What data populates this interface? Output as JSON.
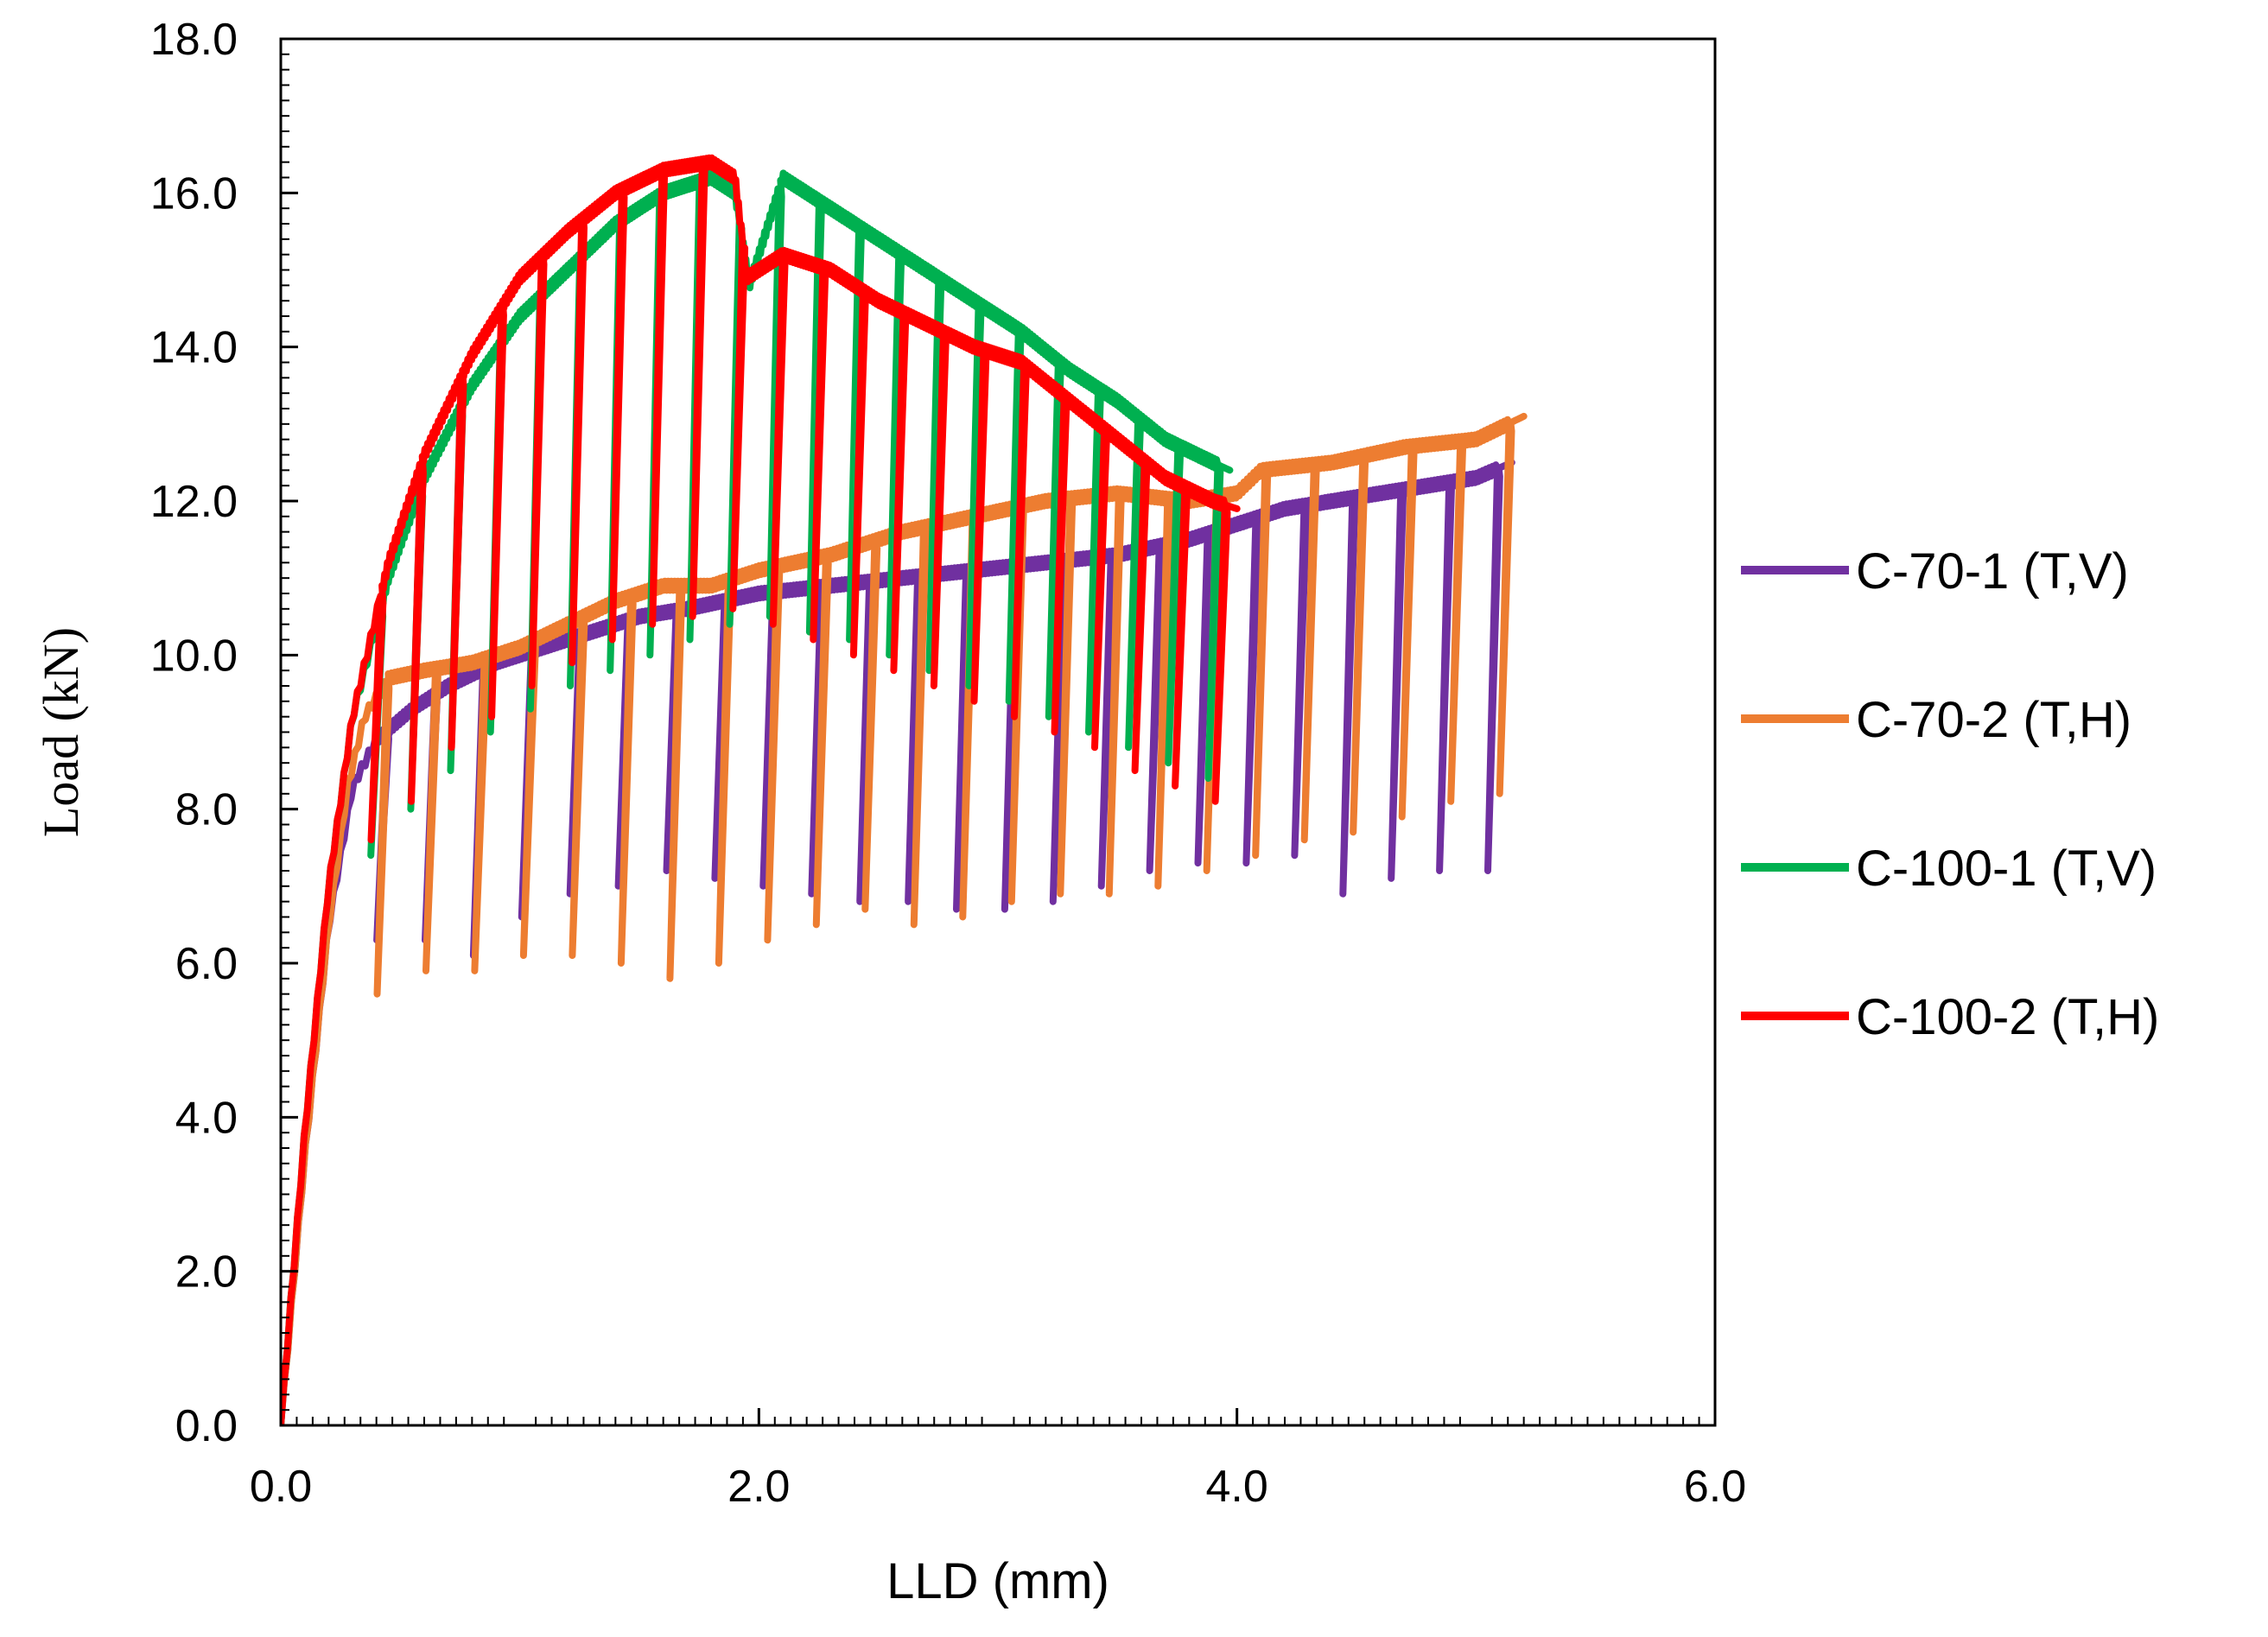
{
  "chart_data": {
    "type": "line",
    "title": "",
    "xlabel": "LLD (mm)",
    "ylabel": "Load (kN)",
    "xlim": [
      0,
      6
    ],
    "ylim": [
      0,
      18
    ],
    "xticks": [
      0,
      2,
      4,
      6
    ],
    "xtick_labels": [
      "0.0",
      "2.0",
      "4.0",
      "6.0"
    ],
    "yticks": [
      0,
      2,
      4,
      6,
      8,
      10,
      12,
      14,
      16,
      18
    ],
    "ytick_labels": [
      "0.0",
      "2.0",
      "4.0",
      "6.0",
      "8.0",
      "10.0",
      "12.0",
      "14.0",
      "16.0",
      "18.0"
    ],
    "grid": false,
    "legend_position": "right",
    "series": [
      {
        "name": "C-70-1 (T,V)",
        "color": "#7030A0",
        "envelope_x": [
          0,
          0.1,
          0.2,
          0.3,
          0.4,
          0.55,
          0.7,
          0.9,
          1.1,
          1.3,
          1.5,
          1.7,
          2.0,
          2.3,
          2.6,
          2.9,
          3.2,
          3.5,
          3.8,
          4.0,
          4.2,
          4.4,
          4.6,
          4.8,
          5.0,
          5.15
        ],
        "envelope_y": [
          0,
          3.5,
          6.5,
          8.3,
          8.9,
          9.3,
          9.6,
          9.9,
          10.1,
          10.3,
          10.5,
          10.6,
          10.8,
          10.9,
          11.0,
          11.1,
          11.2,
          11.3,
          11.5,
          11.7,
          11.9,
          12.0,
          12.1,
          12.2,
          12.3,
          12.5
        ],
        "unload_min_y": [
          6.3,
          6.3,
          6.1,
          6.6,
          6.9,
          7.0,
          7.2,
          7.1,
          7.0,
          6.9,
          6.8,
          6.8,
          6.7,
          6.7,
          6.8,
          7.0,
          7.2,
          7.3,
          7.3,
          7.4,
          6.9,
          7.1,
          7.2,
          7.2
        ]
      },
      {
        "name": "C-70-2 (T,H)",
        "color": "#ED7D31",
        "envelope_x": [
          0,
          0.1,
          0.2,
          0.28,
          0.35,
          0.45,
          0.6,
          0.8,
          1.0,
          1.2,
          1.4,
          1.6,
          1.8,
          2.0,
          2.3,
          2.6,
          2.9,
          3.2,
          3.5,
          3.8,
          4.0,
          4.1,
          4.4,
          4.7,
          5.0,
          5.2
        ],
        "envelope_y": [
          0,
          3.5,
          6.5,
          8.3,
          9.2,
          9.7,
          9.8,
          9.9,
          10.1,
          10.4,
          10.7,
          10.9,
          10.9,
          11.1,
          11.3,
          11.6,
          11.8,
          12.0,
          12.1,
          12.0,
          12.1,
          12.4,
          12.5,
          12.7,
          12.8,
          13.1
        ],
        "unload_min_y": [
          5.6,
          5.9,
          5.9,
          6.1,
          6.1,
          6.0,
          5.8,
          6.0,
          6.3,
          6.5,
          6.7,
          6.5,
          6.6,
          6.8,
          6.9,
          6.9,
          7.0,
          7.2,
          7.4,
          7.6,
          7.7,
          7.9,
          8.1,
          8.2
        ]
      },
      {
        "name": "C-100-1 (T,V)",
        "color": "#00B050",
        "envelope_x": [
          0,
          0.1,
          0.2,
          0.3,
          0.45,
          0.6,
          0.8,
          1.0,
          1.2,
          1.4,
          1.6,
          1.8,
          1.9,
          1.96,
          2.1,
          2.3,
          2.5,
          2.7,
          2.9,
          3.1,
          3.3,
          3.5,
          3.7,
          3.9,
          3.97
        ],
        "envelope_y": [
          0,
          3.8,
          7.0,
          9.2,
          11.0,
          12.3,
          13.5,
          14.4,
          15.0,
          15.6,
          16.0,
          16.2,
          16.0,
          14.8,
          16.2,
          15.8,
          15.4,
          15.0,
          14.6,
          14.2,
          13.7,
          13.3,
          12.8,
          12.5,
          12.4
        ],
        "unload_min_y": [
          7.4,
          8.0,
          8.5,
          9.0,
          9.3,
          9.6,
          9.8,
          10.0,
          10.2,
          10.4,
          10.5,
          10.3,
          10.2,
          10.0,
          9.8,
          9.6,
          9.4,
          9.2,
          9.0,
          8.8,
          8.6,
          8.4
        ]
      },
      {
        "name": "C-100-2 (T,H)",
        "color": "#FF0000",
        "envelope_x": [
          0,
          0.1,
          0.2,
          0.3,
          0.45,
          0.6,
          0.8,
          1.0,
          1.2,
          1.4,
          1.6,
          1.8,
          1.9,
          1.95,
          2.1,
          2.3,
          2.5,
          2.7,
          2.9,
          3.1,
          3.3,
          3.5,
          3.7,
          3.9,
          4.0
        ],
        "envelope_y": [
          0,
          3.8,
          7.0,
          9.2,
          11.2,
          12.6,
          13.9,
          14.9,
          15.5,
          16.0,
          16.3,
          16.4,
          16.2,
          14.9,
          15.2,
          15.0,
          14.6,
          14.3,
          14.0,
          13.8,
          13.3,
          12.8,
          12.3,
          12.0,
          11.9
        ],
        "unload_min_y": [
          7.6,
          8.1,
          8.8,
          9.2,
          9.6,
          9.9,
          10.2,
          10.4,
          10.5,
          10.6,
          10.4,
          10.2,
          10.0,
          9.8,
          9.6,
          9.4,
          9.2,
          9.0,
          8.8,
          8.5,
          8.3,
          8.1
        ]
      }
    ]
  }
}
